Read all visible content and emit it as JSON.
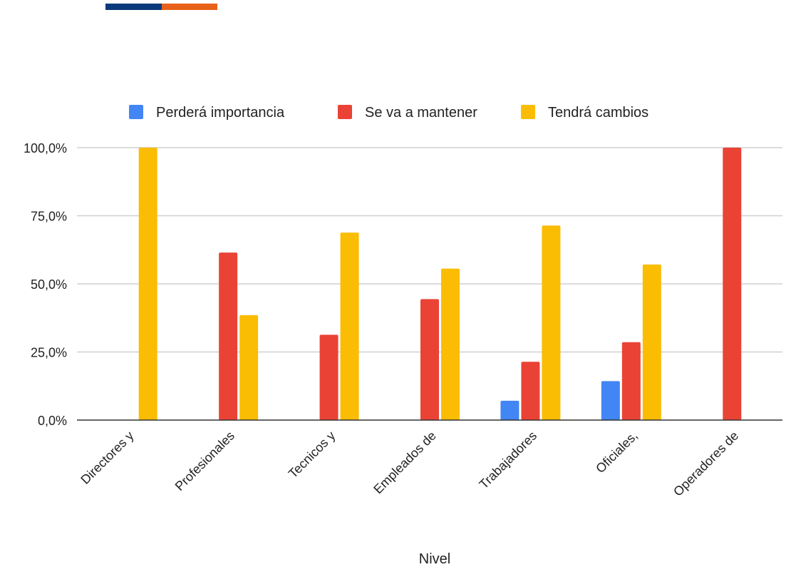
{
  "header": {
    "accent_colors": [
      "#0b3a7a",
      "#e8611a"
    ]
  },
  "chart_data": {
    "type": "bar",
    "title": "",
    "xlabel": "Nivel",
    "ylabel": "",
    "ylim": [
      0,
      100
    ],
    "yticks": [
      "0,0%",
      "25,0%",
      "50,0%",
      "75,0%",
      "100,0%"
    ],
    "grid": true,
    "legend_position": "top",
    "categories": [
      "Directores y",
      "Profesionales",
      "Tecnicos y",
      "Empleados de",
      "Trabajadores",
      "Oficiales,",
      "Operadores de"
    ],
    "series": [
      {
        "name": "Perderá importancia",
        "color": "#4285f4",
        "values": [
          0,
          0,
          0,
          0,
          7.1,
          14.3,
          0
        ]
      },
      {
        "name": "Se va a mantener",
        "color": "#ea4335",
        "values": [
          0,
          61.5,
          31.3,
          44.4,
          21.4,
          28.6,
          100
        ]
      },
      {
        "name": "Tendrá cambios",
        "color": "#fbbc04",
        "values": [
          100,
          38.5,
          68.8,
          55.6,
          71.4,
          57.1,
          0
        ]
      }
    ]
  }
}
